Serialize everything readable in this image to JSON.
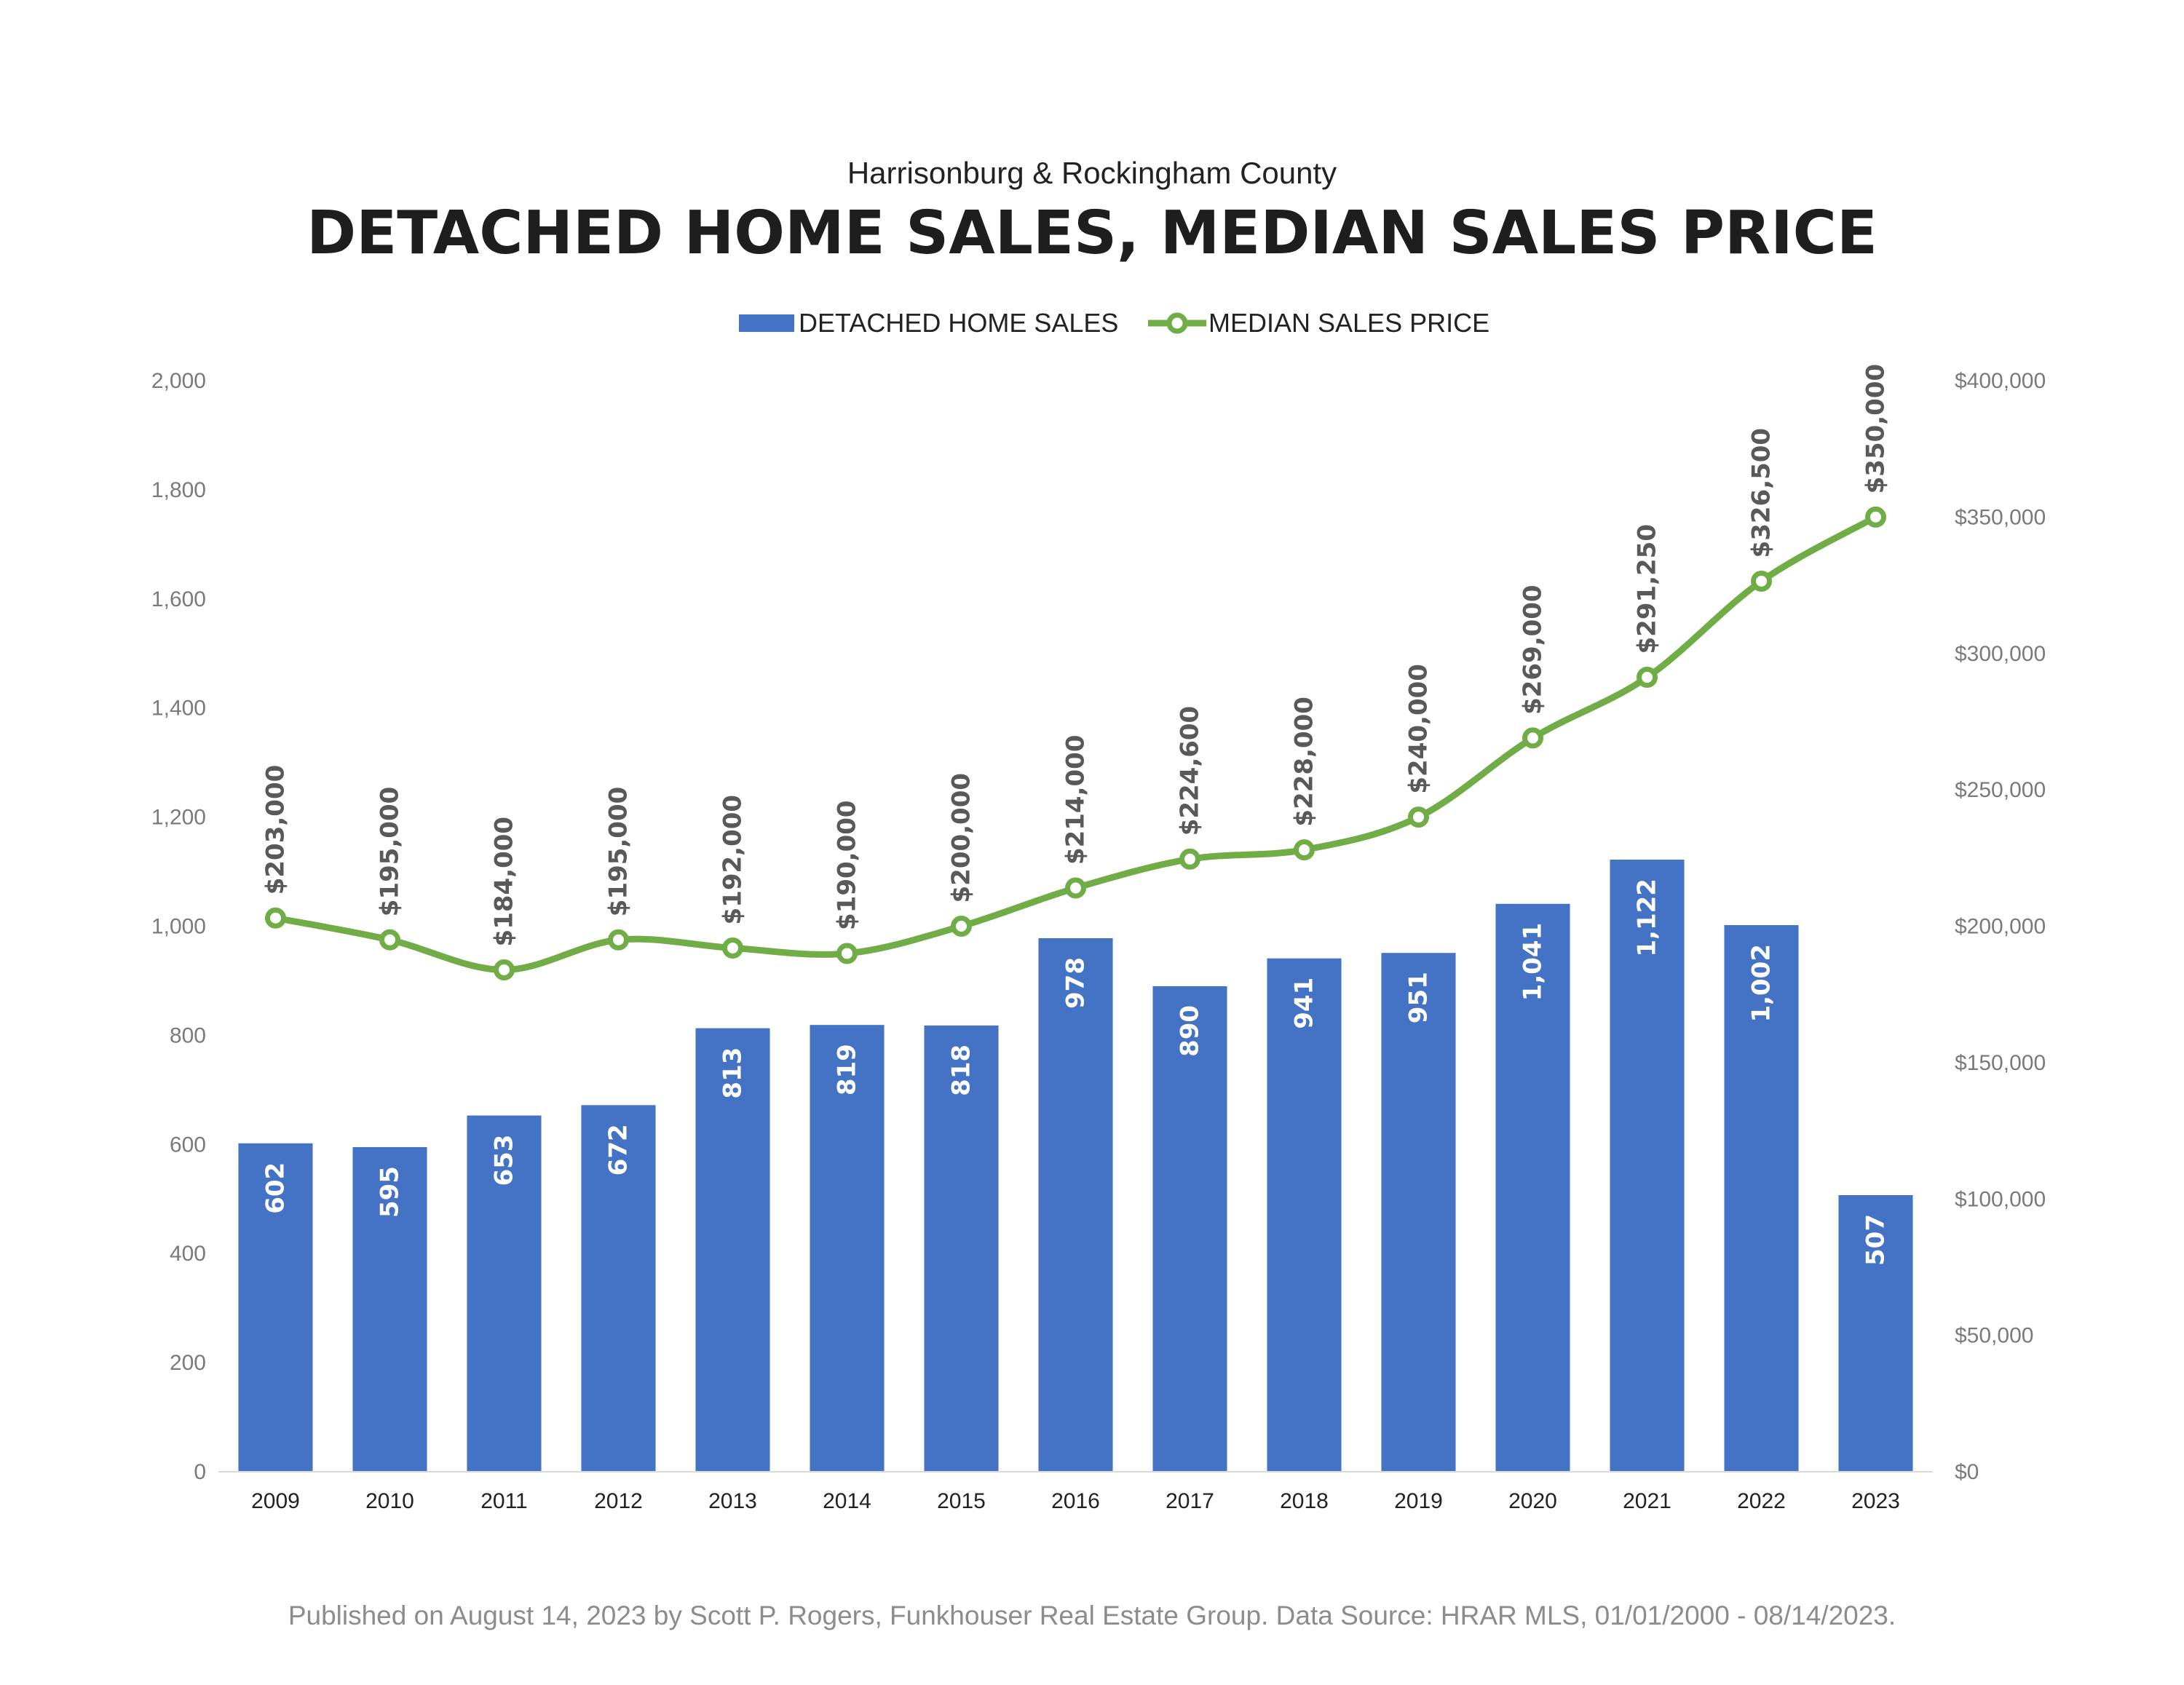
{
  "chart_data": {
    "type": "bar",
    "subtitle": "Harrisonburg & Rockingham County",
    "title": "DETACHED HOME SALES, MEDIAN SALES PRICE",
    "categories": [
      "2009",
      "2010",
      "2011",
      "2012",
      "2013",
      "2014",
      "2015",
      "2016",
      "2017",
      "2018",
      "2019",
      "2020",
      "2021",
      "2022",
      "2023"
    ],
    "series": [
      {
        "name": "DETACHED HOME SALES",
        "type": "bar",
        "axis": "left",
        "color": "#4472c4",
        "values": [
          602,
          595,
          653,
          672,
          813,
          819,
          818,
          978,
          890,
          941,
          951,
          1041,
          1122,
          1002,
          507
        ],
        "labels": [
          "602",
          "595",
          "653",
          "672",
          "813",
          "819",
          "818",
          "978",
          "890",
          "941",
          "951",
          "1,041",
          "1,122",
          "1,002",
          "507"
        ]
      },
      {
        "name": "MEDIAN SALES PRICE",
        "type": "line",
        "axis": "right",
        "color": "#70ad47",
        "values": [
          203000,
          195000,
          184000,
          195000,
          192000,
          190000,
          200000,
          214000,
          224600,
          228000,
          240000,
          269000,
          291250,
          326500,
          350000
        ],
        "labels": [
          "$203,000",
          "$195,000",
          "$184,000",
          "$195,000",
          "$192,000",
          "$190,000",
          "$200,000",
          "$214,000",
          "$224,600",
          "$228,000",
          "$240,000",
          "$269,000",
          "$291,250",
          "$326,500",
          "$350,000"
        ]
      }
    ],
    "left_axis": {
      "range": [
        0,
        2000
      ],
      "ticks": [
        "0",
        "200",
        "400",
        "600",
        "800",
        "1,000",
        "1,200",
        "1,400",
        "1,600",
        "1,800",
        "2,000"
      ]
    },
    "right_axis": {
      "range": [
        0,
        400000
      ],
      "ticks": [
        "$0",
        "$50,000",
        "$100,000",
        "$150,000",
        "$200,000",
        "$250,000",
        "$300,000",
        "$350,000",
        "$400,000"
      ]
    },
    "legend_position": "top-center",
    "grid": false
  },
  "footer": {
    "text": "Published on August 14, 2023 by Scott P. Rogers, Funkhouser Real Estate Group. Data Source: HRAR MLS, 01/01/2000 - 08/14/2023."
  }
}
